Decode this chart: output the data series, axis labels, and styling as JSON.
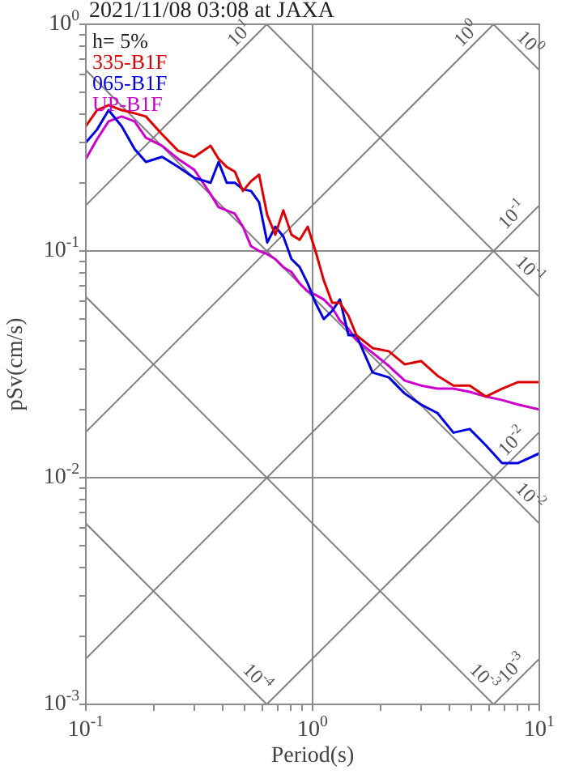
{
  "chart_data": {
    "type": "line",
    "title": "2021/11/08 03:08 at JAXA",
    "xlabel": "Period(s)",
    "ylabel": "pSv(cm/s)",
    "legend_title": "h= 5%",
    "legend": "top left",
    "log": "xy",
    "grid": true,
    "marker": "none",
    "line_style": "solid",
    "xlim": [
      0.1,
      10
    ],
    "ylim": [
      0.001,
      1
    ],
    "xticks": [
      {
        "value": 0.1,
        "label": "10$^{-1}$"
      },
      {
        "value": 0.2,
        "label": null
      },
      {
        "value": 0.3,
        "label": null
      },
      {
        "value": 0.4,
        "label": null
      },
      {
        "value": 0.5,
        "label": null
      },
      {
        "value": 0.6,
        "label": null
      },
      {
        "value": 0.7,
        "label": null
      },
      {
        "value": 0.8,
        "label": null
      },
      {
        "value": 0.9,
        "label": null
      },
      {
        "value": 1,
        "label": "10$^{0}$"
      },
      {
        "value": 2,
        "label": null
      },
      {
        "value": 3,
        "label": null
      },
      {
        "value": 4,
        "label": null
      },
      {
        "value": 5,
        "label": null
      },
      {
        "value": 6,
        "label": null
      },
      {
        "value": 7,
        "label": null
      },
      {
        "value": 8,
        "label": null
      },
      {
        "value": 9,
        "label": null
      },
      {
        "value": 10,
        "label": "10$^{1}$"
      }
    ],
    "yticks": [
      {
        "value": 0.001,
        "label": "10$^{-3}$"
      },
      {
        "value": 0.002,
        "label": null
      },
      {
        "value": 0.003,
        "label": null
      },
      {
        "value": 0.004,
        "label": null
      },
      {
        "value": 0.005,
        "label": null
      },
      {
        "value": 0.006,
        "label": null
      },
      {
        "value": 0.007,
        "label": null
      },
      {
        "value": 0.008,
        "label": null
      },
      {
        "value": 0.009,
        "label": null
      },
      {
        "value": 0.01,
        "label": "10$^{-2}$"
      },
      {
        "value": 0.02,
        "label": null
      },
      {
        "value": 0.03,
        "label": null
      },
      {
        "value": 0.04,
        "label": null
      },
      {
        "value": 0.05,
        "label": null
      },
      {
        "value": 0.06,
        "label": null
      },
      {
        "value": 0.07,
        "label": null
      },
      {
        "value": 0.08,
        "label": null
      },
      {
        "value": 0.09,
        "label": null
      },
      {
        "value": 0.1,
        "label": "10$^{-1}$"
      },
      {
        "value": 0.2,
        "label": null
      },
      {
        "value": 0.3,
        "label": null
      },
      {
        "value": 0.4,
        "label": null
      },
      {
        "value": 0.5,
        "label": null
      },
      {
        "value": 0.6,
        "label": null
      },
      {
        "value": 0.7,
        "label": null
      },
      {
        "value": 0.8,
        "label": null
      },
      {
        "value": 0.9,
        "label": null
      },
      {
        "value": 1,
        "label": "10$^{0}$"
      }
    ],
    "x": [
      0.1,
      0.112,
      0.126,
      0.144,
      0.164,
      0.184,
      0.217,
      0.255,
      0.301,
      0.355,
      0.385,
      0.418,
      0.454,
      0.493,
      0.535,
      0.581,
      0.631,
      0.685,
      0.743,
      0.807,
      0.877,
      0.952,
      1.03,
      1.12,
      1.22,
      1.32,
      1.44,
      1.56,
      1.84,
      2.17,
      2.55,
      3.01,
      3.55,
      4.18,
      4.93,
      5.81,
      6.85,
      8.07,
      10
    ],
    "series": [
      {
        "name": "335-B1F",
        "color": "#dd0000",
        "values": [
          0.355,
          0.418,
          0.44,
          0.418,
          0.405,
          0.392,
          0.327,
          0.277,
          0.26,
          0.291,
          0.255,
          0.235,
          0.224,
          0.184,
          0.203,
          0.217,
          0.144,
          0.118,
          0.151,
          0.118,
          0.112,
          0.128,
          0.1,
          0.0743,
          0.0591,
          0.0591,
          0.0518,
          0.0425,
          0.0373,
          0.0361,
          0.0316,
          0.0327,
          0.0282,
          0.0255,
          0.0255,
          0.0228,
          0.0247,
          0.0264,
          0.0264
        ]
      },
      {
        "name": "065-B1F",
        "color": "#0000dd",
        "values": [
          0.301,
          0.343,
          0.418,
          0.355,
          0.282,
          0.247,
          0.26,
          0.235,
          0.21,
          0.2,
          0.247,
          0.2,
          0.2,
          0.187,
          0.184,
          0.164,
          0.109,
          0.128,
          0.116,
          0.0921,
          0.0849,
          0.0719,
          0.0591,
          0.0501,
          0.0544,
          0.0611,
          0.0425,
          0.0425,
          0.0291,
          0.0277,
          0.0235,
          0.021,
          0.0193,
          0.0158,
          0.0164,
          0.0139,
          0.0116,
          0.0116,
          0.0128
        ]
      },
      {
        "name": "UP-B1F",
        "color": "#cc00cc",
        "values": [
          0.255,
          0.311,
          0.373,
          0.392,
          0.373,
          0.316,
          0.291,
          0.255,
          0.228,
          0.178,
          0.156,
          0.151,
          0.146,
          0.128,
          0.105,
          0.1,
          0.0968,
          0.0921,
          0.0849,
          0.0807,
          0.0719,
          0.0663,
          0.0641,
          0.0611,
          0.0562,
          0.0493,
          0.0454,
          0.0405,
          0.0355,
          0.0311,
          0.0268,
          0.0255,
          0.0247,
          0.0247,
          0.0239,
          0.0228,
          0.022,
          0.021,
          0.02
        ]
      },
      {
        "name": "10$^{1}$",
        "color": "#808080",
        "x": [
          0.1,
          0.628
        ],
        "values": [
          0.159,
          1
        ]
      },
      {
        "name": "10$^{0}$",
        "color": "#808080",
        "x": [
          0.1,
          6.28
        ],
        "values": [
          0.0159,
          1
        ]
      },
      {
        "name": "10$^{-1}$",
        "color": "#808080",
        "x": [
          0.1,
          10
        ],
        "values": [
          0.00159,
          0.159
        ]
      },
      {
        "name": "10$^{-2}$",
        "color": "#808080",
        "x": [
          0.628,
          10
        ],
        "values": [
          0.001,
          0.0159
        ]
      },
      {
        "name": "10$^{-3}$",
        "color": "#808080",
        "x": [
          6.28,
          10
        ],
        "values": [
          0.001,
          0.00159
        ]
      },
      {
        "name": "10$^{0}$",
        "color": "#808080",
        "x": [
          6.28,
          10
        ],
        "values": [
          1,
          0.628
        ]
      },
      {
        "name": "10$^{-1}$",
        "color": "#808080",
        "x": [
          0.628,
          10
        ],
        "values": [
          1,
          0.0628
        ]
      },
      {
        "name": "10$^{-2}$",
        "color": "#808080",
        "x": [
          0.1,
          10
        ],
        "values": [
          0.628,
          0.00628
        ]
      },
      {
        "name": "10$^{-3}$",
        "color": "#808080",
        "x": [
          0.1,
          6.28
        ],
        "values": [
          0.0628,
          0.001
        ]
      },
      {
        "name": "10$^{-4}$",
        "color": "#808080",
        "x": [
          0.1,
          0.628
        ],
        "values": [
          0.00628,
          0.001
        ]
      }
    ]
  }
}
